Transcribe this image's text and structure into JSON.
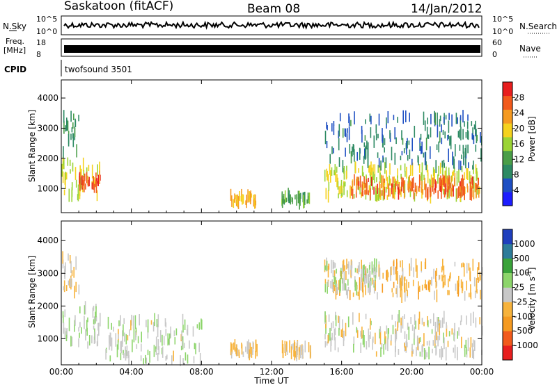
{
  "header": {
    "station": "Saskatoon (fitACF)",
    "beam": "Beam 08",
    "date": "14/Jan/2012"
  },
  "top_panels": {
    "nsky_label": "N.Sky",
    "nsearch_label": "N.Search",
    "freq_label_1": "Freq.",
    "freq_label_2": "[MHz]",
    "nave_label": "Nave",
    "cpid_label": "CPID",
    "cpid_value": "twofsound 3501",
    "noise_ticks": [
      "10^5",
      "10^0"
    ],
    "noise_ticks_right": [
      "10^5",
      "10^0"
    ],
    "freq_ticks": [
      "18",
      "8"
    ],
    "nave_ticks": [
      "60",
      "0"
    ]
  },
  "colors": {
    "power_scale": [
      "#1d1dff",
      "#1e4fc3",
      "#2d8a63",
      "#4a9e48",
      "#9bd435",
      "#f5d21e",
      "#f59a21",
      "#f25a1c",
      "#e81e1e"
    ],
    "velocity_scale": [
      "#e81e1e",
      "#f25a1c",
      "#f59a21",
      "#f7b33c",
      "#c8c8c8",
      "#8dd56b",
      "#3aa33a",
      "#2d7c9a",
      "#1f3fbd"
    ]
  },
  "chart_data": [
    {
      "type": "heatmap",
      "title": "",
      "xlabel": "",
      "ylabel": "Slant Range [km]",
      "colorbar_label": "Power [dB]",
      "colorbar_ticks": [
        "4",
        "8",
        "12",
        "16",
        "20",
        "24",
        "28"
      ],
      "colorbar_range": [
        0,
        32
      ],
      "x_ticks": [
        "00:00",
        "04:00",
        "08:00",
        "12:00",
        "16:00",
        "20:00",
        "00:00"
      ],
      "xlim_hours": [
        0,
        24
      ],
      "y_ticks": [
        "1000",
        "2000",
        "3000",
        "4000"
      ],
      "ylim": [
        200,
        4600
      ],
      "regions": [
        {
          "t": [
            0.0,
            2.2
          ],
          "r": [
            700,
            1900
          ],
          "v": 18
        },
        {
          "t": [
            1.0,
            2.2
          ],
          "r": [
            1000,
            1400
          ],
          "v": 27
        },
        {
          "t": [
            0.0,
            1.0
          ],
          "r": [
            2100,
            3500
          ],
          "v": 10
        },
        {
          "t": [
            9.6,
            11.2
          ],
          "r": [
            500,
            800
          ],
          "v": 22
        },
        {
          "t": [
            12.5,
            14.2
          ],
          "r": [
            500,
            800
          ],
          "v": 12
        },
        {
          "t": [
            15.0,
            24.0
          ],
          "r": [
            700,
            1700
          ],
          "v": 18
        },
        {
          "t": [
            16.5,
            23.8
          ],
          "r": [
            800,
            1300
          ],
          "v": 26
        },
        {
          "t": [
            15.0,
            24.0
          ],
          "r": [
            1700,
            3400
          ],
          "v": 8
        }
      ]
    },
    {
      "type": "heatmap",
      "title": "",
      "xlabel": "Time UT",
      "ylabel": "Slant Range [km]",
      "colorbar_label": "Velocity [m s^-1]",
      "colorbar_ticks": [
        "1000",
        "500",
        "100",
        "25",
        "-25",
        "-100",
        "-500",
        "-1000"
      ],
      "colorbar_range": [
        -1000,
        1000
      ],
      "x_ticks": [
        "00:00",
        "04:00",
        "08:00",
        "12:00",
        "16:00",
        "20:00",
        "00:00"
      ],
      "xlim_hours": [
        0,
        24
      ],
      "y_ticks": [
        "1000",
        "2000",
        "3000",
        "4000"
      ],
      "ylim": [
        200,
        4600
      ],
      "regions": [
        {
          "t": [
            0.0,
            2.2
          ],
          "r": [
            700,
            2000
          ],
          "v": 60
        },
        {
          "t": [
            0.0,
            1.0
          ],
          "r": [
            2400,
            3500
          ],
          "v": -150
        },
        {
          "t": [
            2.5,
            8.0
          ],
          "r": [
            300,
            1600
          ],
          "v": 50
        },
        {
          "t": [
            9.6,
            11.2
          ],
          "r": [
            500,
            800
          ],
          "v": -150
        },
        {
          "t": [
            12.5,
            14.2
          ],
          "r": [
            500,
            800
          ],
          "v": -150
        },
        {
          "t": [
            15.0,
            24.0
          ],
          "r": [
            500,
            1700
          ],
          "v": 0
        },
        {
          "t": [
            15.0,
            24.0
          ],
          "r": [
            2300,
            3300
          ],
          "v": -200
        },
        {
          "t": [
            15.0,
            18.0
          ],
          "r": [
            2500,
            3300
          ],
          "v": 150
        }
      ]
    }
  ]
}
